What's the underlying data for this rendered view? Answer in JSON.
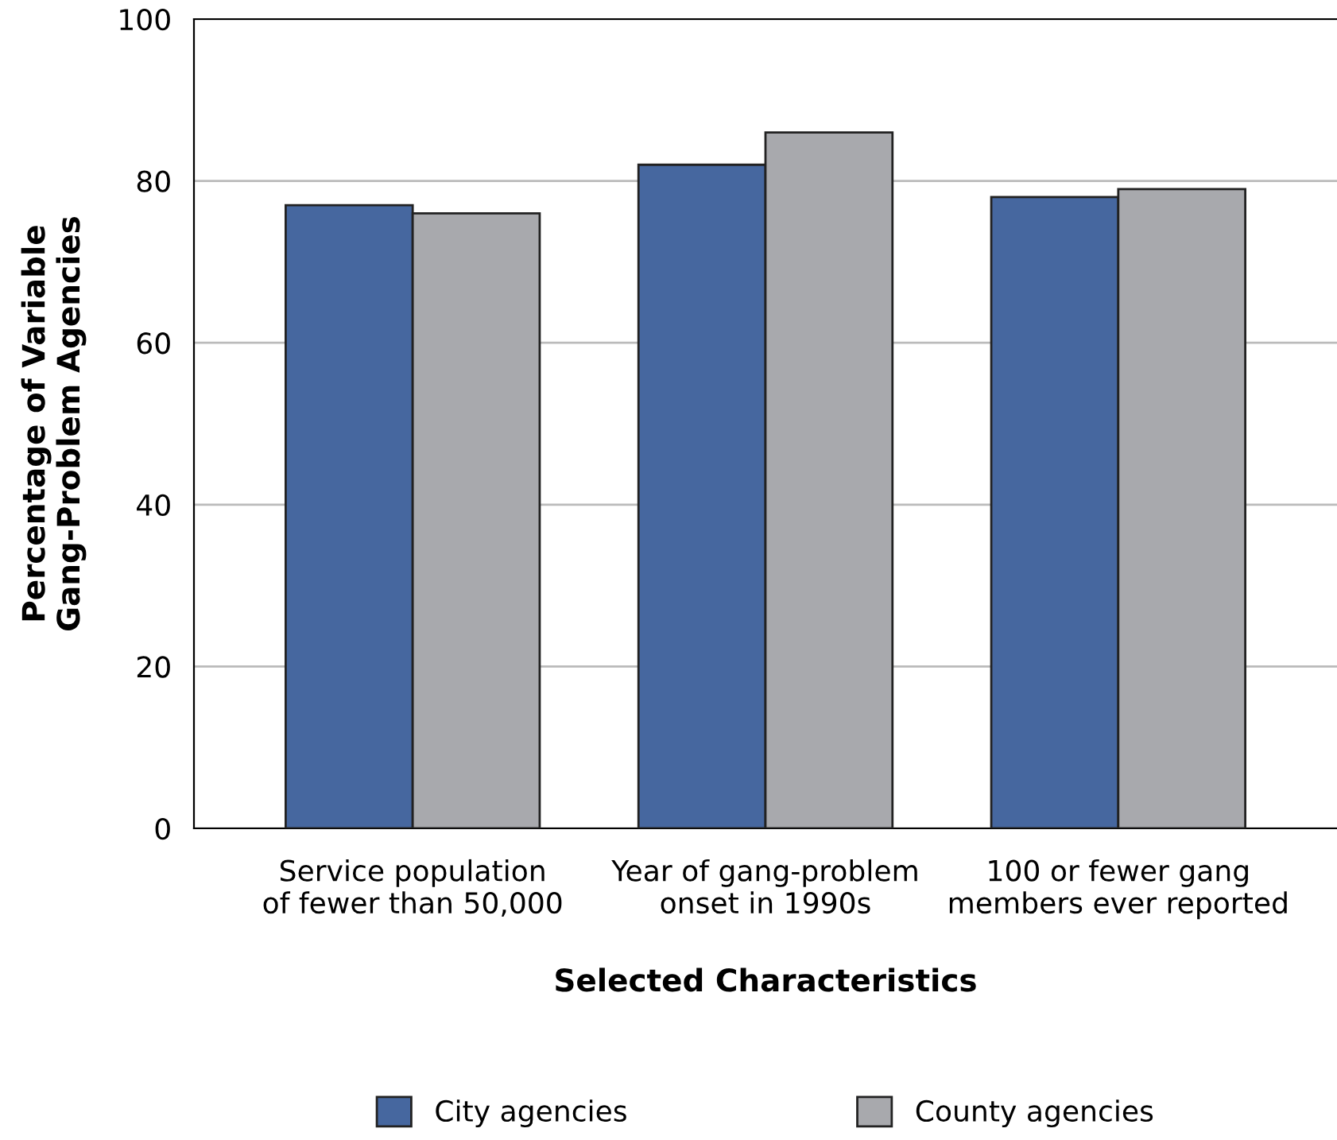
{
  "chart_data": {
    "type": "bar",
    "xlabel": "Selected Characteristics",
    "ylabel": "Percentage of Variable\nGang-Problem Agencies",
    "categories": [
      "Service population\nof fewer than 50,000",
      "Year of gang-problem\nonset in 1990s",
      "100 or fewer gang\nmembers ever reported"
    ],
    "series": [
      {
        "name": "City agencies",
        "color": "#46679f",
        "values": [
          77,
          82,
          78
        ]
      },
      {
        "name": "County agencies",
        "color": "#a8a9ad",
        "values": [
          76,
          86,
          79
        ]
      }
    ],
    "ylim": [
      0,
      100
    ],
    "yticks": [
      0,
      20,
      40,
      60,
      80,
      100
    ],
    "grid": "y",
    "legend": "bottom"
  }
}
